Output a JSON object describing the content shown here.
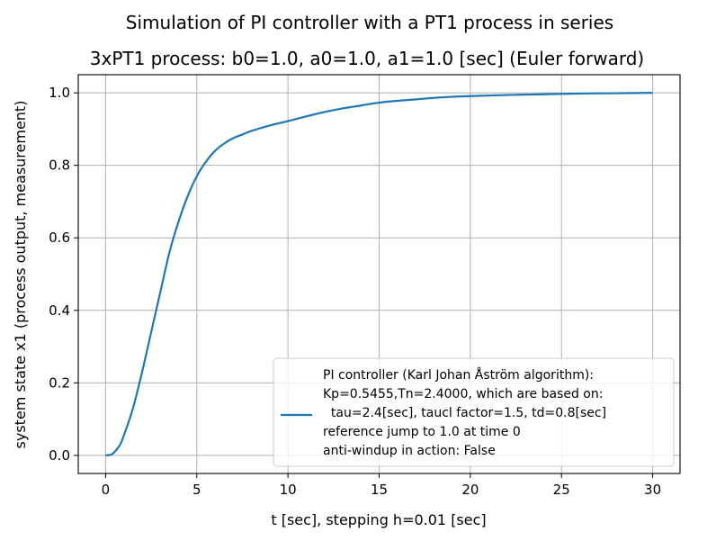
{
  "figure": {
    "suptitle": "Simulation of PI controller with a PT1 process in series"
  },
  "chart_data": {
    "type": "line",
    "title": "3xPT1 process: b0=1.0, a0=1.0, a1=1.0 [sec] (Euler forward)",
    "xlabel": "t [sec], stepping h=0.01 [sec]",
    "ylabel": "system state x1 (process output, measurement)",
    "xlim": [
      -1.5,
      31.5
    ],
    "ylim": [
      -0.05,
      1.05
    ],
    "xticks": [
      0,
      5,
      10,
      15,
      20,
      25,
      30
    ],
    "yticks": [
      0.0,
      0.2,
      0.4,
      0.6,
      0.8,
      1.0
    ],
    "xtick_labels": [
      "0",
      "5",
      "10",
      "15",
      "20",
      "25",
      "30"
    ],
    "ytick_labels": [
      "0.0",
      "0.2",
      "0.4",
      "0.6",
      "0.8",
      "1.0"
    ],
    "grid": true,
    "legend_position": "bottom-right",
    "series": [
      {
        "color": "#1f77b4",
        "legend_lines": [
          "PI controller (Karl Johan Åström algorithm):",
          "Kp=0.5455,Tn=2.4000, which are based on:",
          "  tau=2.4[sec], taucl factor=1.5, td=0.8[sec]",
          "reference jump to 1.0 at time 0",
          "anti-windup in action: False"
        ],
        "x": [
          0,
          0.3,
          0.5,
          0.8,
          1.0,
          1.5,
          2.0,
          2.5,
          3.0,
          3.5,
          4.0,
          4.5,
          5.0,
          5.5,
          6.0,
          6.5,
          7.0,
          7.5,
          8.0,
          9.0,
          10.0,
          11.0,
          12.0,
          13.0,
          14.0,
          15.0,
          16.0,
          17.0,
          18.0,
          19.0,
          20.0,
          22.0,
          24.0,
          26.0,
          28.0,
          30.0
        ],
        "y": [
          0.0,
          0.002,
          0.01,
          0.03,
          0.055,
          0.13,
          0.23,
          0.34,
          0.45,
          0.56,
          0.645,
          0.715,
          0.77,
          0.81,
          0.84,
          0.86,
          0.875,
          0.885,
          0.895,
          0.91,
          0.922,
          0.935,
          0.947,
          0.957,
          0.965,
          0.973,
          0.978,
          0.982,
          0.986,
          0.989,
          0.991,
          0.994,
          0.996,
          0.998,
          0.999,
          1.0
        ]
      }
    ]
  }
}
